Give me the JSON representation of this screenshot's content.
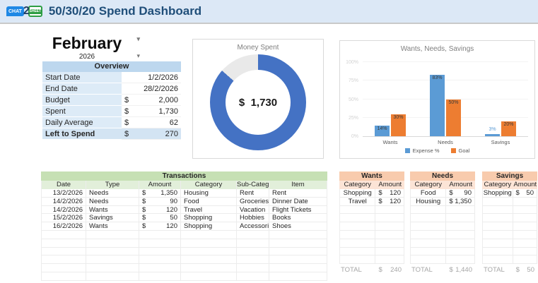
{
  "header": {
    "logo": {
      "chat": "CHAT",
      "two": "2",
      "sheet": "SHEET"
    },
    "title": "50/30/20 Spend Dashboard"
  },
  "period": {
    "month": "February",
    "year": "2026",
    "dropdown_icon": "▾"
  },
  "currency_symbol": "$",
  "overview": {
    "title": "Overview",
    "rows": [
      {
        "label": "Start Date",
        "currency": "",
        "value": "1/2/2026",
        "highlight": false
      },
      {
        "label": "End Date",
        "currency": "",
        "value": "28/2/2026",
        "highlight": false
      },
      {
        "label": "Budget",
        "currency": "$",
        "value": "2,000",
        "highlight": false
      },
      {
        "label": "Spent",
        "currency": "$",
        "value": "1,730",
        "highlight": false
      },
      {
        "label": "Daily Average",
        "currency": "$",
        "value": "62",
        "highlight": false
      },
      {
        "label": "Left to Spend",
        "currency": "$",
        "value": "270",
        "highlight": true
      }
    ]
  },
  "chart_data": [
    {
      "type": "pie",
      "subtype": "donut",
      "title": "Money Spent",
      "center_label": "$  1,730",
      "slices": [
        {
          "name": "Spent",
          "value": 1730,
          "color": "#4472c4"
        },
        {
          "name": "Remaining",
          "value": 270,
          "color": "#e9e9e9"
        }
      ],
      "start_angle_deg": 0,
      "direction": "clockwise"
    },
    {
      "type": "bar",
      "title": "Wants, Needs, Savings",
      "categories": [
        "Wants",
        "Needs",
        "Savings"
      ],
      "series": [
        {
          "name": "Expense %",
          "color": "#5b9bd5",
          "values": [
            14,
            83,
            3
          ]
        },
        {
          "name": "Goal",
          "color": "#ed7d31",
          "values": [
            30,
            50,
            20
          ]
        }
      ],
      "ylim": [
        0,
        100
      ],
      "yticks": [
        "0%",
        "25%",
        "50%",
        "75%",
        "100%"
      ],
      "grid": true,
      "data_labels": true,
      "legend_position": "bottom"
    }
  ],
  "transactions": {
    "title": "Transactions",
    "columns": [
      "Date",
      "Type",
      "Amount",
      "Category",
      "Sub-Category",
      "Item"
    ],
    "rows": [
      [
        "13/2/2026",
        "Needs",
        "1,350",
        "Housing",
        "Rent",
        "Rent"
      ],
      [
        "14/2/2026",
        "Needs",
        "90",
        "Food",
        "Groceries",
        "Dinner Date"
      ],
      [
        "14/2/2026",
        "Wants",
        "120",
        "Travel",
        "Vacation",
        "Flight Tickets"
      ],
      [
        "15/2/2026",
        "Savings",
        "50",
        "Shopping",
        "Hobbies",
        "Books"
      ],
      [
        "16/2/2026",
        "Wants",
        "120",
        "Shopping",
        "Accessories",
        "Shoes"
      ]
    ],
    "empty_rows": 6
  },
  "breakdown_tables": [
    {
      "title": "Wants",
      "columns": [
        "Category",
        "Amount"
      ],
      "rows": [
        [
          "Shopping",
          "120"
        ],
        [
          "Travel",
          "120"
        ]
      ],
      "empty_rows": 7,
      "total_label": "TOTAL",
      "total": "240"
    },
    {
      "title": "Needs",
      "columns": [
        "Category",
        "Amount"
      ],
      "rows": [
        [
          "Food",
          "90"
        ],
        [
          "Housing",
          "1,350"
        ]
      ],
      "empty_rows": 7,
      "total_label": "TOTAL",
      "total": "1,440"
    },
    {
      "title": "Savings",
      "columns": [
        "Category",
        "Amount"
      ],
      "rows": [
        [
          "Shopping",
          "50"
        ]
      ],
      "empty_rows": 8,
      "total_label": "TOTAL",
      "total": "50"
    }
  ],
  "colors": {
    "topbar_bg": "#dce8f6",
    "title_text": "#1f4e79",
    "overview_header_bg": "#bdd7ee",
    "overview_label_bg": "#ddebf7",
    "transactions_header_bg": "#c6e0b4",
    "transactions_subheader_bg": "#e2efda",
    "breakdown_header_bg": "#f8cbad",
    "breakdown_subheader_bg": "#fce4d6",
    "donut_blue": "#4472c4",
    "bar_blue": "#5b9bd5",
    "bar_orange": "#ed7d31"
  }
}
